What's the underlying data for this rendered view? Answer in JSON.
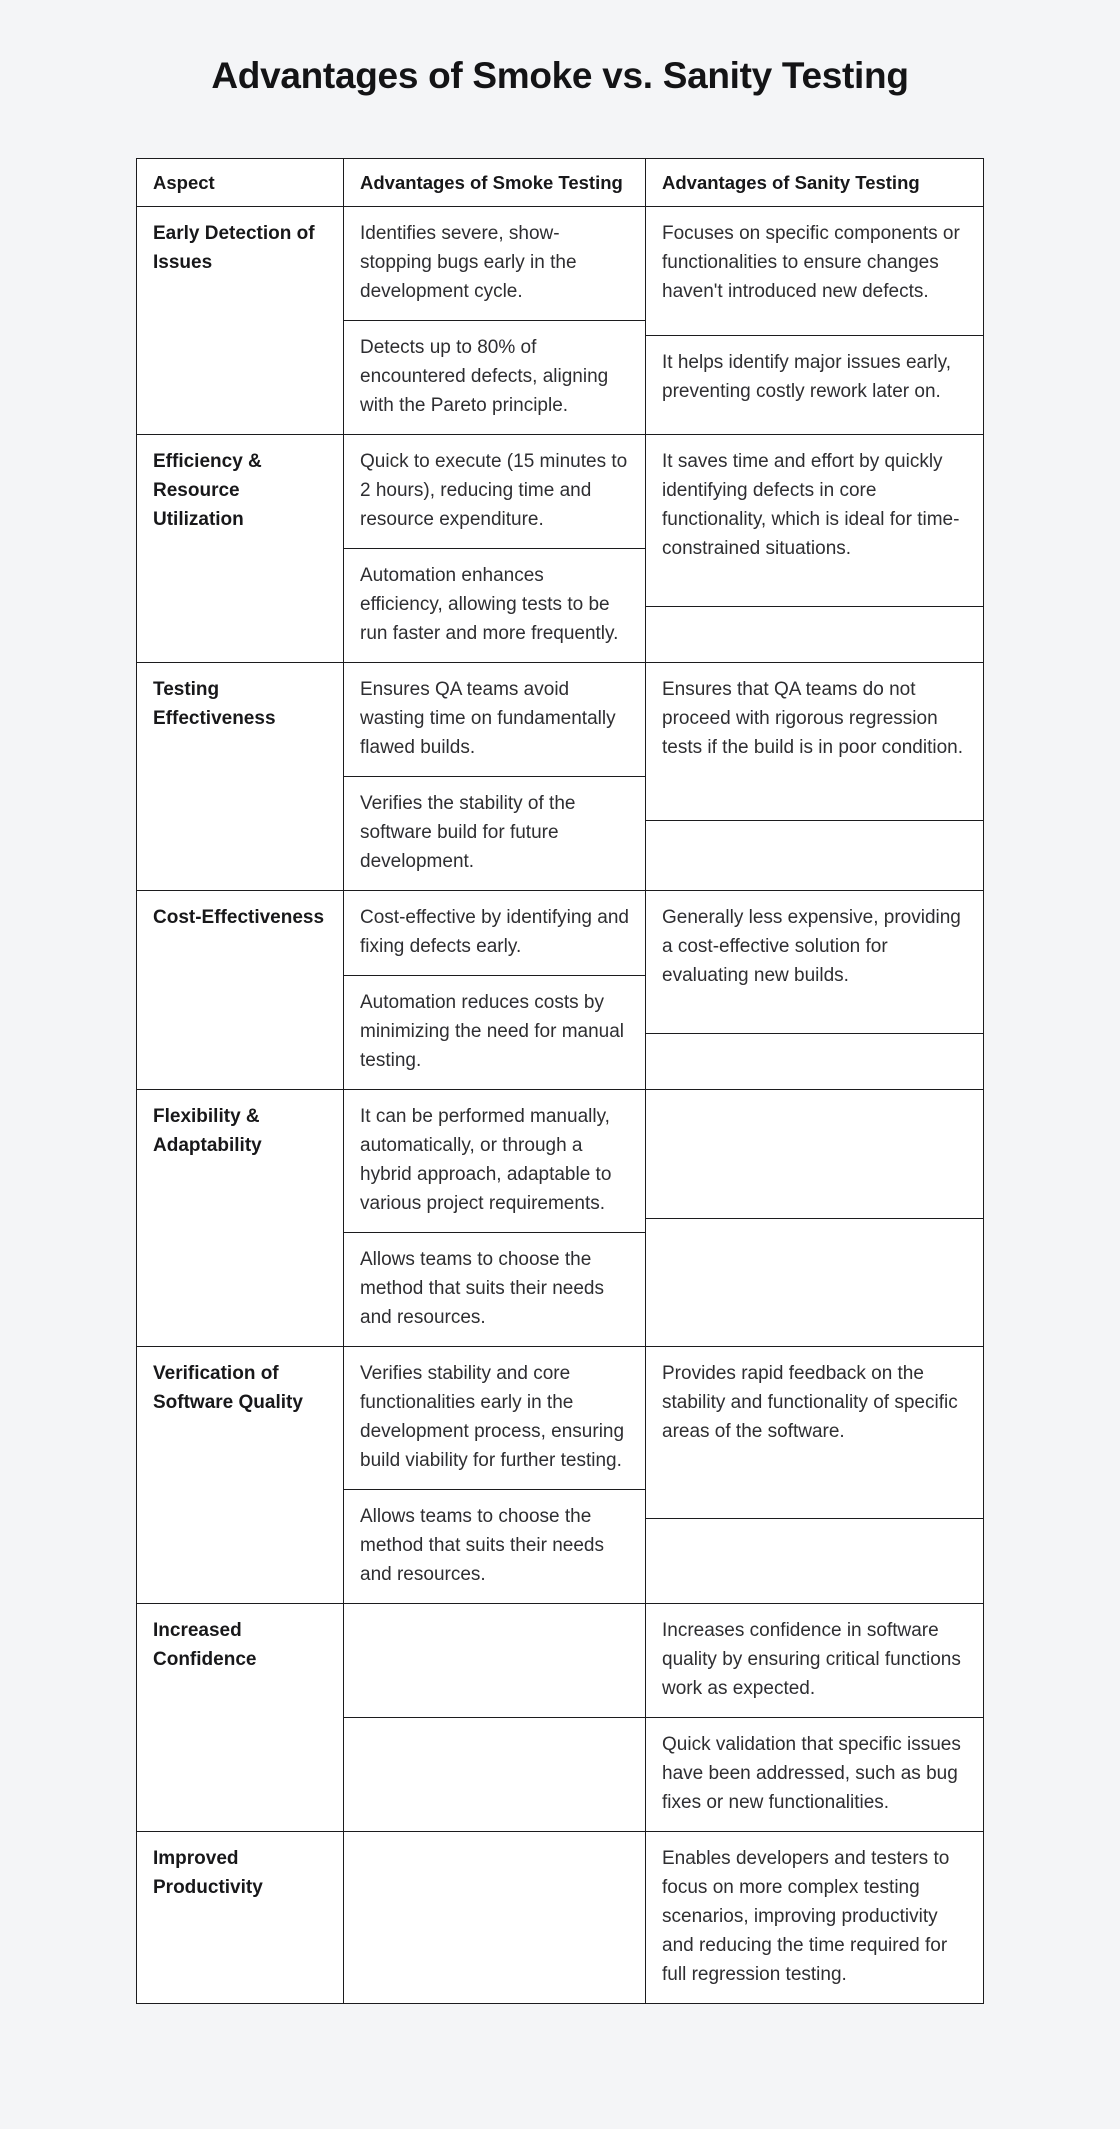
{
  "page": {
    "title": "Advantages of Smoke vs. Sanity Testing",
    "background_color": "#f4f5f7"
  },
  "table": {
    "border_color": "#1c1c1e",
    "cell_background": "#ffffff",
    "headers": {
      "aspect": "Aspect",
      "smoke": "Advantages of Smoke Testing",
      "sanity": "Advantages of Sanity Testing"
    },
    "rows": [
      {
        "aspect": "Early Detection of Issues",
        "smoke": [
          "Identifies severe, show-stopping bugs early in the development cycle.",
          "Detects up to 80% of encountered defects, aligning with the Pareto principle."
        ],
        "sanity": [
          "Focuses on specific components or functionalities to ensure changes haven't introduced new defects.",
          "It helps identify major issues early, preventing costly rework later on."
        ]
      },
      {
        "aspect": "Efficiency & Resource Utilization",
        "smoke": [
          "Quick to execute (15 minutes to 2 hours), reducing time and resource expenditure.",
          "Automation enhances efficiency, allowing tests to be run faster and more frequently."
        ],
        "sanity": [
          "It saves time and effort by quickly identifying defects in core functionality, which is ideal for time-constrained situations.",
          ""
        ]
      },
      {
        "aspect": "Testing Effectiveness",
        "smoke": [
          "Ensures QA teams avoid wasting time on fundamentally flawed builds.",
          "Verifies the stability of the software build for future development."
        ],
        "sanity": [
          "Ensures that QA teams do not proceed with rigorous regression tests if the build is in poor condition.",
          ""
        ]
      },
      {
        "aspect": "Cost-Effectiveness",
        "smoke": [
          "Cost-effective by identifying and fixing defects early.",
          "Automation reduces costs by minimizing the need for manual testing."
        ],
        "sanity": [
          "Generally less expensive, providing a cost-effective solution for evaluating new builds.",
          ""
        ]
      },
      {
        "aspect": "Flexibility & Adaptability",
        "smoke": [
          "It can be performed manually, automatically, or through a hybrid approach, adaptable to various project requirements.",
          "Allows teams to choose the method that suits their needs and resources."
        ],
        "sanity": [
          "",
          ""
        ]
      },
      {
        "aspect": "Verification of Software Quality",
        "smoke": [
          "Verifies stability and core functionalities early in the development process, ensuring build viability for further testing.",
          "Allows teams to choose the method that suits their needs and resources."
        ],
        "sanity": [
          "Provides rapid feedback on the stability and functionality of specific areas of the software.",
          ""
        ]
      },
      {
        "aspect": "Increased Confidence",
        "smoke": [
          "",
          ""
        ],
        "sanity": [
          "Increases confidence in software quality by ensuring critical functions work as expected.",
          "Quick validation that specific issues have been addressed, such as bug fixes or new functionalities."
        ]
      },
      {
        "aspect": "Improved Productivity",
        "smoke": [
          ""
        ],
        "sanity": [
          "Enables developers and testers to focus on more complex testing scenarios, improving productivity and reducing the time required for full regression testing."
        ]
      }
    ]
  }
}
